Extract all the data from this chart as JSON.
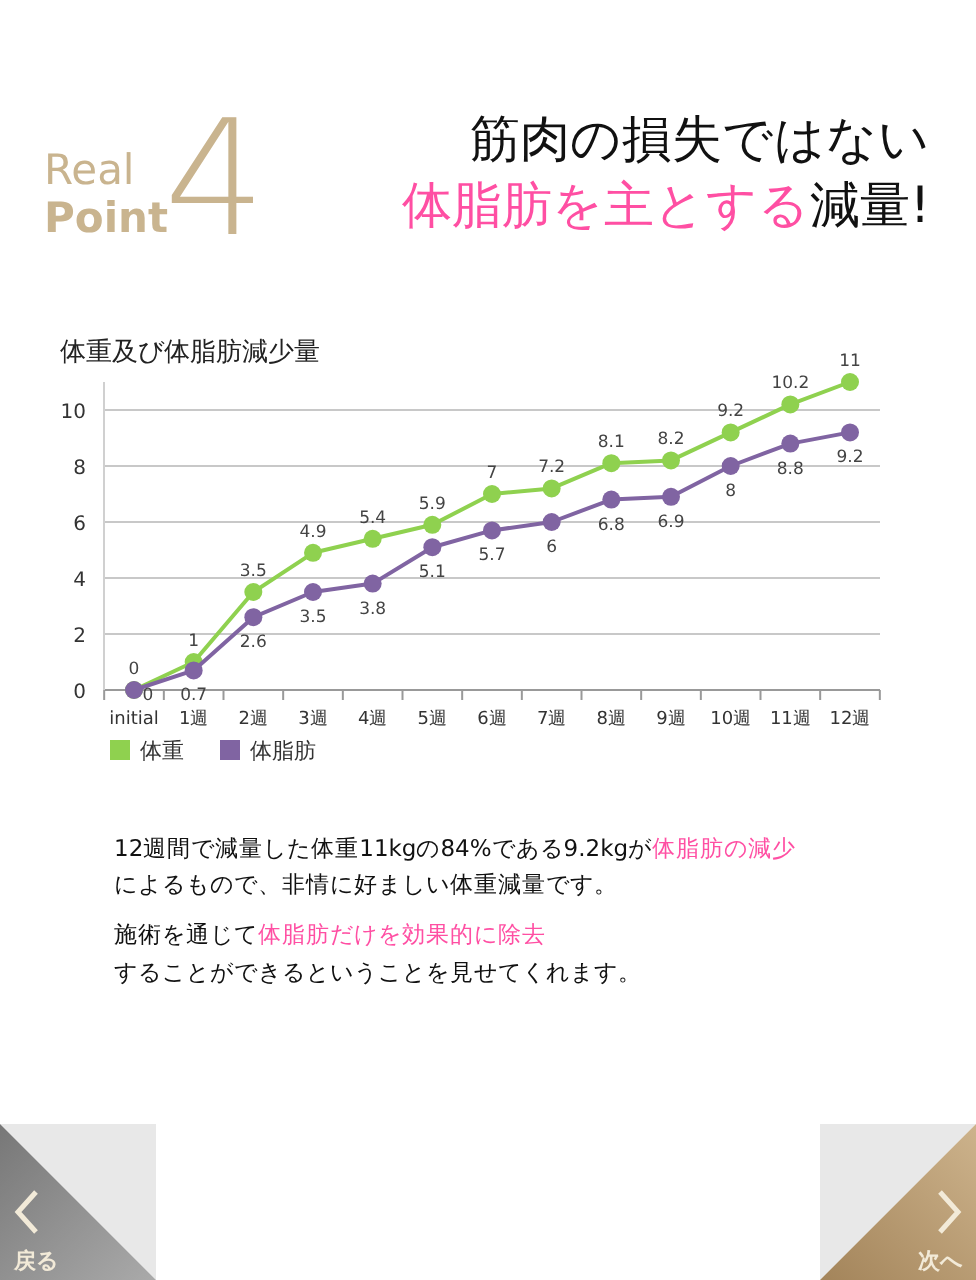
{
  "chart_data": {
    "type": "line",
    "title": "体重及び体脂肪減少量",
    "categories": [
      "initial",
      "1週",
      "2週",
      "3週",
      "4週",
      "5週",
      "6週",
      "7週",
      "8週",
      "9週",
      "10週",
      "11週",
      "12週"
    ],
    "series": [
      {
        "name": "体重",
        "color": "#8fd14f",
        "values": [
          0,
          1,
          3.5,
          4.9,
          5.4,
          5.9,
          7,
          7.2,
          8.1,
          8.2,
          9.2,
          10.2,
          11
        ]
      },
      {
        "name": "体脂肪",
        "color": "#8064a2",
        "values": [
          0,
          0.7,
          2.6,
          3.5,
          3.8,
          5.1,
          5.7,
          6,
          6.8,
          6.9,
          8,
          8.8,
          9.2
        ]
      }
    ],
    "ylim": [
      0,
      11
    ],
    "yticks": [
      0,
      2,
      4,
      6,
      8,
      10
    ],
    "grid": "y",
    "legend": "bottom left",
    "marker": "circle",
    "line_style": "solid",
    "data_labels": true,
    "annotations": [
      "Real",
      "Point",
      "4",
      "筋肉の損失ではない",
      "体脂肪を主とする",
      "減量!",
      "12週間で減量した体重11kgの84%である9.2kgが",
      "体脂肪の減少",
      "によるもので、非情に好ましい体重減量です。",
      "施術を通じて",
      "体脂肪だけを効果的に除去",
      "することができるということを見せてくれます。",
      "戻る",
      "次へ"
    ]
  }
}
